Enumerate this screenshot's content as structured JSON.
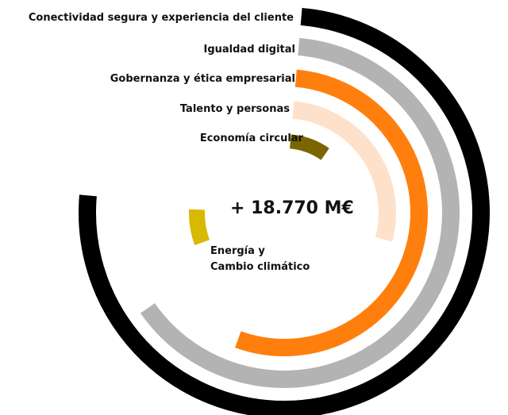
{
  "chart_data": {
    "type": "radial_bar",
    "center_label": "+ 18.770 M€",
    "categories": [
      "Conectividad segura y experiencia del cliente",
      "Igualdad digital",
      "Gobernanza y ética empresarial",
      "Talento y personas",
      "Economía circular",
      "Energía y\nCambio climático"
    ],
    "values": [
      270,
      230,
      195,
      100,
      30,
      22
    ],
    "colors": [
      "#000000",
      "#b3b3b3",
      "#ff7f0e",
      "#fde1cb",
      "#7a6500",
      "#d6b900"
    ]
  }
}
